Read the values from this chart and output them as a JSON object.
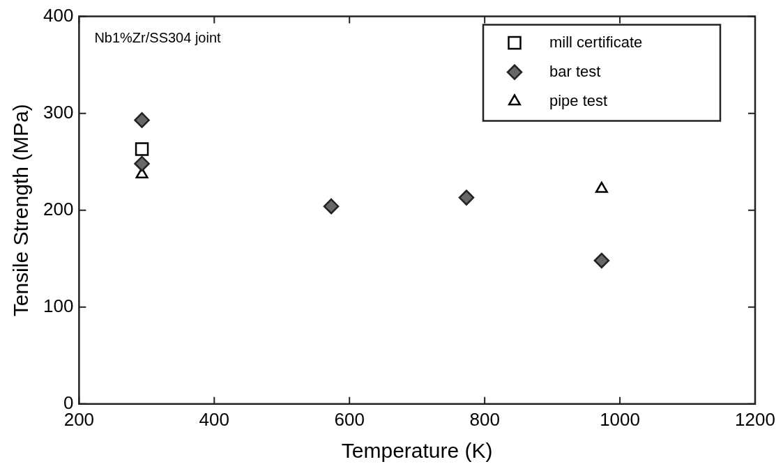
{
  "chart_data": {
    "type": "scatter",
    "xlabel": "Temperature (K)",
    "ylabel": "Tensile Strength (MPa)",
    "xlim": [
      200,
      1200
    ],
    "xticks": [
      200,
      400,
      600,
      800,
      1000,
      1200
    ],
    "ylim": [
      0,
      400
    ],
    "yticks": [
      0,
      100,
      200,
      300,
      400
    ],
    "grid": false,
    "legend": "top right",
    "annotations": [
      "Nb1%Zr/SS304 joint"
    ],
    "series": [
      {
        "name": "mill certificate",
        "color": "#000000",
        "marker": "square",
        "x": [
          293
        ],
        "values": [
          263
        ]
      },
      {
        "name": "bar test",
        "color": "#666666",
        "marker": "diamond",
        "x": [
          293,
          293,
          573,
          773,
          973
        ],
        "values": [
          293,
          248,
          204,
          213,
          148
        ]
      },
      {
        "name": "pipe test",
        "color": "#000000",
        "marker": "triangle",
        "x": [
          293,
          973
        ],
        "values": [
          237,
          222
        ]
      }
    ]
  }
}
